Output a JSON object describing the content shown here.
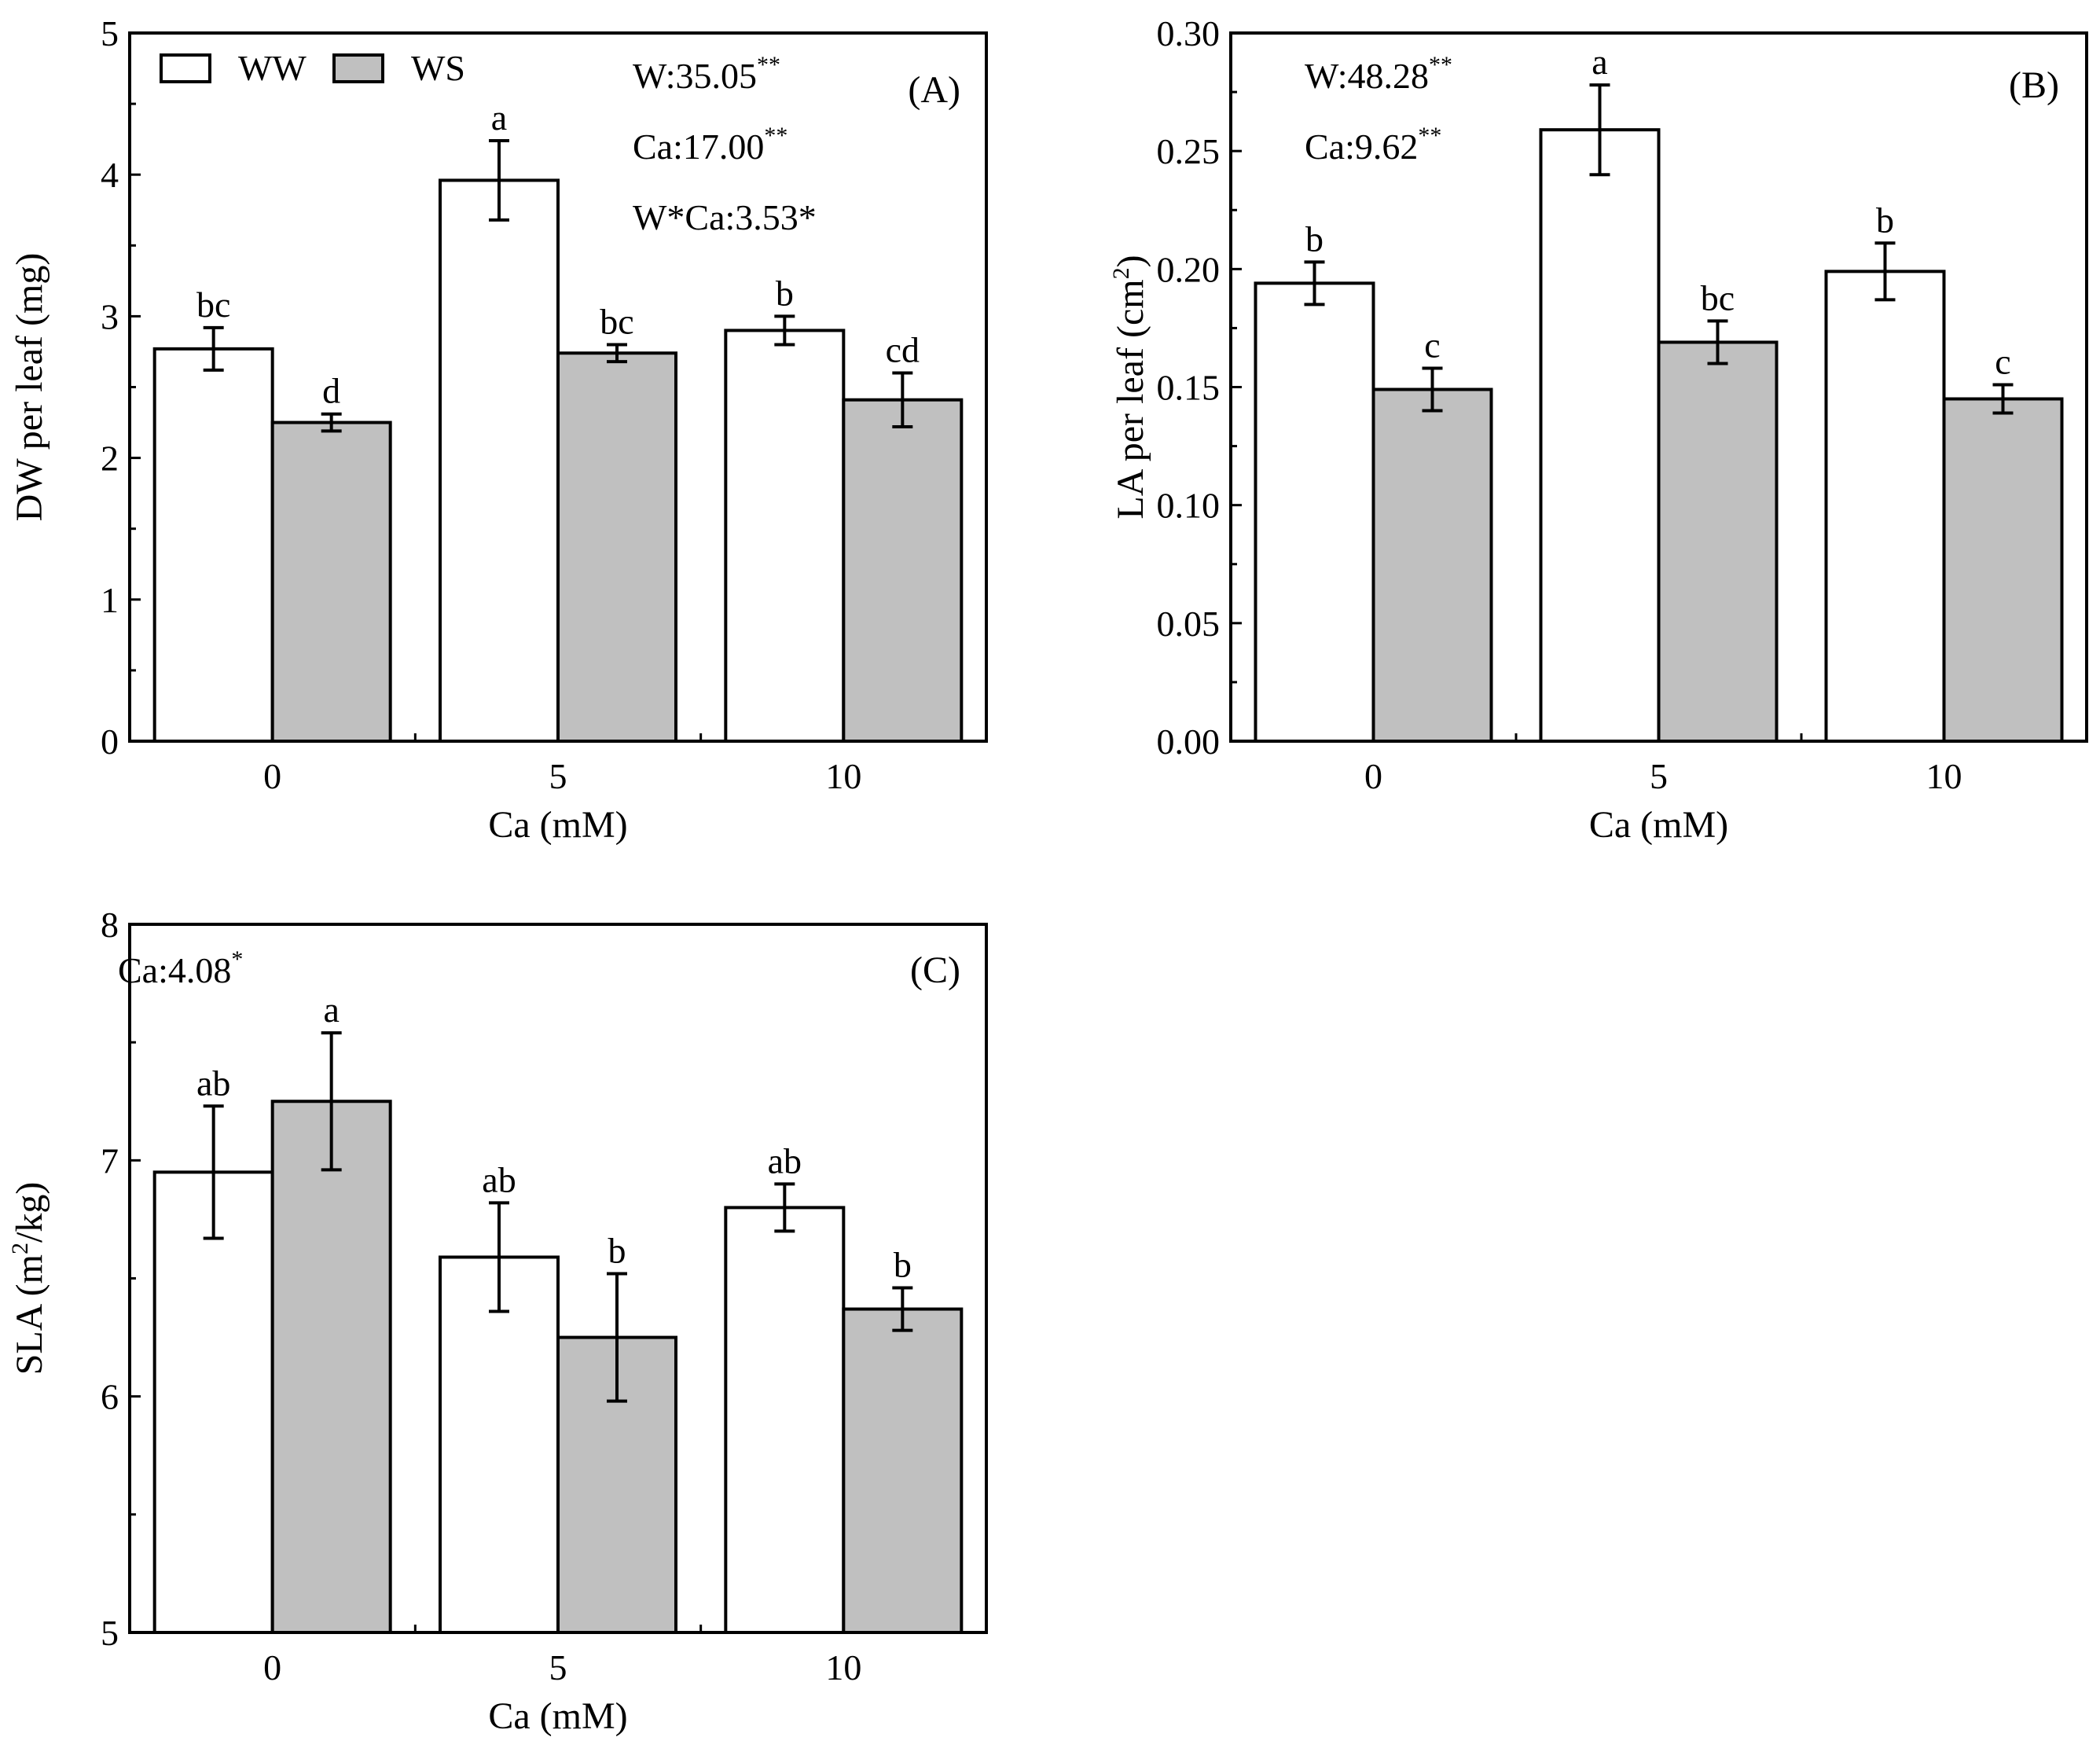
{
  "colors": {
    "WW": "#ffffff",
    "WS": "#c0c0c0",
    "axis": "#000000"
  },
  "legend": [
    {
      "name": "WW",
      "label": "WW"
    },
    {
      "name": "WS",
      "label": "WS"
    }
  ],
  "chart_data": [
    {
      "id": "A",
      "type": "bar",
      "panel_label": "(A)",
      "xlabel": "Ca (mM)",
      "ylabel": "DW per leaf (mg)",
      "categories": [
        "0",
        "5",
        "10"
      ],
      "ylim": [
        0,
        5
      ],
      "yticks": [
        0,
        1,
        2,
        3,
        4,
        5
      ],
      "yticklabels": [
        "0",
        "1",
        "2",
        "3",
        "4",
        "5"
      ],
      "series": [
        {
          "name": "WW",
          "values": [
            2.77,
            3.96,
            2.9
          ],
          "errors": [
            0.15,
            0.28,
            0.1
          ],
          "letters": [
            "bc",
            "a",
            "b"
          ]
        },
        {
          "name": "WS",
          "values": [
            2.25,
            2.74,
            2.41
          ],
          "errors": [
            0.06,
            0.06,
            0.19
          ],
          "letters": [
            "d",
            "bc",
            "cd"
          ]
        }
      ],
      "annotations": [
        {
          "base": "W:35.05",
          "sup": "**"
        },
        {
          "base": "Ca:17.00",
          "sup": "**"
        },
        {
          "base": "W*Ca:3.53*",
          "sup": ""
        }
      ]
    },
    {
      "id": "B",
      "type": "bar",
      "panel_label": "(B)",
      "xlabel": "Ca (mM)",
      "ylabel": "LA per leaf (cm²)",
      "categories": [
        "0",
        "5",
        "10"
      ],
      "ylim": [
        0,
        0.3
      ],
      "yticks": [
        0,
        0.05,
        0.1,
        0.15,
        0.2,
        0.25,
        0.3
      ],
      "yticklabels": [
        "0.00",
        "0.05",
        "0.10",
        "0.15",
        "0.20",
        "0.25",
        "0.30"
      ],
      "series": [
        {
          "name": "WW",
          "values": [
            0.194,
            0.259,
            0.199
          ],
          "errors": [
            0.009,
            0.019,
            0.012
          ],
          "letters": [
            "b",
            "a",
            "b"
          ]
        },
        {
          "name": "WS",
          "values": [
            0.149,
            0.169,
            0.145
          ],
          "errors": [
            0.009,
            0.009,
            0.006
          ],
          "letters": [
            "c",
            "bc",
            "c"
          ]
        }
      ],
      "annotations": [
        {
          "base": "W:48.28",
          "sup": "**"
        },
        {
          "base": "Ca:9.62",
          "sup": "**"
        }
      ]
    },
    {
      "id": "C",
      "type": "bar",
      "panel_label": "(C)",
      "xlabel": "Ca (mM)",
      "ylabel": "SLA (m²/kg)",
      "categories": [
        "0",
        "5",
        "10"
      ],
      "ylim": [
        5,
        8
      ],
      "yticks": [
        5,
        6,
        7,
        8
      ],
      "yticklabels": [
        "5",
        "6",
        "7",
        "8"
      ],
      "series": [
        {
          "name": "WW",
          "values": [
            6.95,
            6.59,
            6.8
          ],
          "errors": [
            0.28,
            0.23,
            0.1
          ],
          "letters": [
            "ab",
            "ab",
            "ab"
          ]
        },
        {
          "name": "WS",
          "values": [
            7.25,
            6.25,
            6.37
          ],
          "errors": [
            0.29,
            0.27,
            0.09
          ],
          "letters": [
            "a",
            "b",
            "b"
          ]
        }
      ],
      "annotations": [
        {
          "base": "Ca:4.08",
          "sup": "*"
        }
      ]
    }
  ]
}
